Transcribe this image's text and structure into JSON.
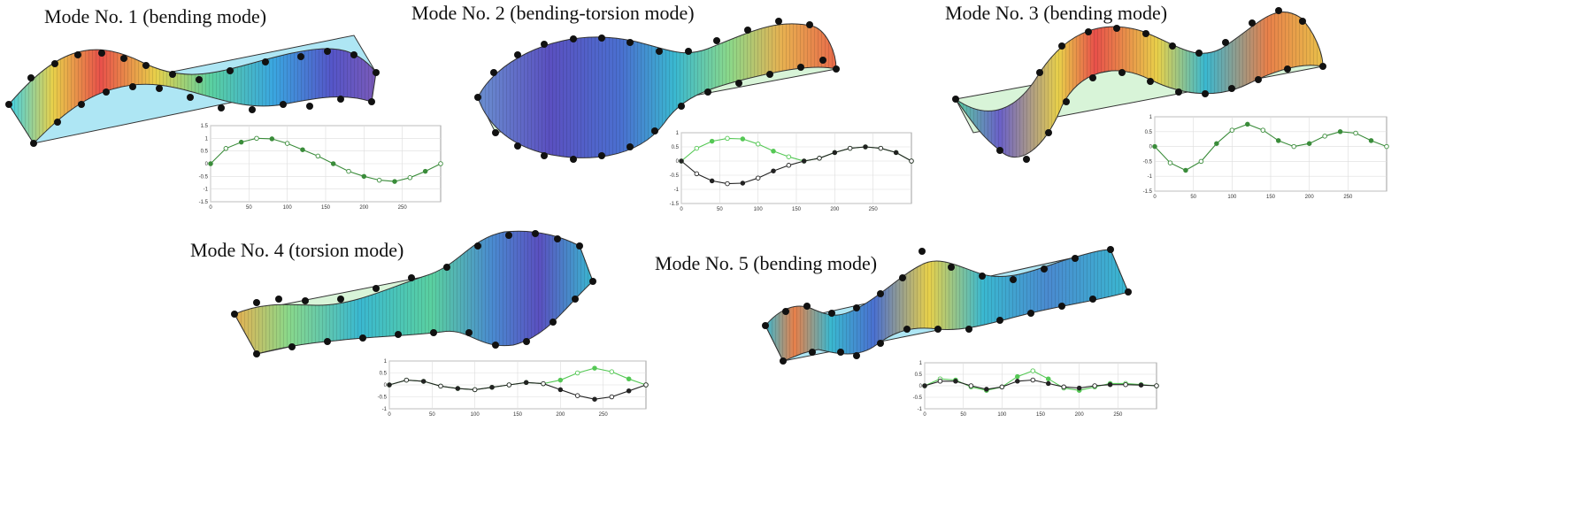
{
  "modes": [
    {
      "title": "Mode No. 1 (bending mode)",
      "type": "bending",
      "plot": {
        "xlim": [
          0,
          300
        ],
        "ylim": [
          -1.5,
          1.5
        ],
        "xticks": [
          "0",
          "50",
          "100",
          "150",
          "200",
          "250"
        ],
        "yticks": [
          "1.5",
          "1",
          "0.5",
          "0",
          "-0.5",
          "-1",
          "-1.5"
        ],
        "series": [
          {
            "color": "#3a8c3a",
            "points": [
              [
                0,
                0
              ],
              [
                20,
                0.6
              ],
              [
                40,
                0.85
              ],
              [
                60,
                1
              ],
              [
                80,
                0.98
              ],
              [
                100,
                0.8
              ],
              [
                120,
                0.55
              ],
              [
                140,
                0.3
              ],
              [
                160,
                0
              ],
              [
                180,
                -0.3
              ],
              [
                200,
                -0.5
              ],
              [
                220,
                -0.65
              ],
              [
                240,
                -0.7
              ],
              [
                260,
                -0.55
              ],
              [
                280,
                -0.3
              ],
              [
                300,
                0
              ]
            ]
          }
        ]
      }
    },
    {
      "title": "Mode No. 2 (bending-torsion mode)",
      "type": "bending-torsion",
      "plot": {
        "xlim": [
          0,
          300
        ],
        "ylim": [
          -1.5,
          1
        ],
        "xticks": [
          "0",
          "50",
          "100",
          "150",
          "200",
          "250"
        ],
        "yticks": [
          "1",
          "0.5",
          "0",
          "-0.5",
          "-1",
          "-1.5"
        ],
        "series": [
          {
            "color": "#55c855",
            "points": [
              [
                0,
                0
              ],
              [
                20,
                0.45
              ],
              [
                40,
                0.7
              ],
              [
                60,
                0.8
              ],
              [
                80,
                0.78
              ],
              [
                100,
                0.6
              ],
              [
                120,
                0.35
              ],
              [
                140,
                0.15
              ],
              [
                160,
                0
              ],
              [
                180,
                0.1
              ],
              [
                200,
                0.3
              ],
              [
                220,
                0.45
              ],
              [
                240,
                0.5
              ],
              [
                260,
                0.45
              ],
              [
                280,
                0.3
              ],
              [
                300,
                0
              ]
            ]
          },
          {
            "color": "#222222",
            "points": [
              [
                0,
                0
              ],
              [
                20,
                -0.45
              ],
              [
                40,
                -0.7
              ],
              [
                60,
                -0.8
              ],
              [
                80,
                -0.78
              ],
              [
                100,
                -0.6
              ],
              [
                120,
                -0.35
              ],
              [
                140,
                -0.15
              ],
              [
                160,
                0
              ],
              [
                180,
                0.1
              ],
              [
                200,
                0.3
              ],
              [
                220,
                0.45
              ],
              [
                240,
                0.5
              ],
              [
                260,
                0.45
              ],
              [
                280,
                0.3
              ],
              [
                300,
                0
              ]
            ]
          }
        ]
      }
    },
    {
      "title": "Mode No. 3 (bending mode)",
      "type": "bending",
      "plot": {
        "xlim": [
          0,
          300
        ],
        "ylim": [
          -1.5,
          1
        ],
        "xticks": [
          "0",
          "50",
          "100",
          "150",
          "200",
          "250"
        ],
        "yticks": [
          "1",
          "0.5",
          "0",
          "-0.5",
          "-1",
          "-1.5"
        ],
        "series": [
          {
            "color": "#3a8c3a",
            "points": [
              [
                0,
                0
              ],
              [
                20,
                -0.55
              ],
              [
                40,
                -0.8
              ],
              [
                60,
                -0.5
              ],
              [
                80,
                0.1
              ],
              [
                100,
                0.55
              ],
              [
                120,
                0.75
              ],
              [
                140,
                0.55
              ],
              [
                160,
                0.2
              ],
              [
                180,
                0
              ],
              [
                200,
                0.1
              ],
              [
                220,
                0.35
              ],
              [
                240,
                0.5
              ],
              [
                260,
                0.45
              ],
              [
                280,
                0.2
              ],
              [
                300,
                0
              ]
            ]
          }
        ]
      }
    },
    {
      "title": "Mode No. 4 (torsion mode)",
      "type": "torsion",
      "plot": {
        "xlim": [
          0,
          300
        ],
        "ylim": [
          -1,
          1
        ],
        "xticks": [
          "0",
          "50",
          "100",
          "150",
          "200",
          "250"
        ],
        "yticks": [
          "1",
          "0.5",
          "0",
          "-0.5",
          "-1"
        ],
        "series": [
          {
            "color": "#55c855",
            "points": [
              [
                0,
                0
              ],
              [
                20,
                0.2
              ],
              [
                40,
                0.15
              ],
              [
                60,
                -0.05
              ],
              [
                80,
                -0.15
              ],
              [
                100,
                -0.2
              ],
              [
                120,
                -0.1
              ],
              [
                140,
                0
              ],
              [
                160,
                0.1
              ],
              [
                180,
                0.05
              ],
              [
                200,
                0.2
              ],
              [
                220,
                0.5
              ],
              [
                240,
                0.7
              ],
              [
                260,
                0.55
              ],
              [
                280,
                0.25
              ],
              [
                300,
                0
              ]
            ]
          },
          {
            "color": "#222222",
            "points": [
              [
                0,
                0
              ],
              [
                20,
                0.2
              ],
              [
                40,
                0.15
              ],
              [
                60,
                -0.05
              ],
              [
                80,
                -0.15
              ],
              [
                100,
                -0.2
              ],
              [
                120,
                -0.1
              ],
              [
                140,
                0
              ],
              [
                160,
                0.1
              ],
              [
                180,
                0.05
              ],
              [
                200,
                -0.2
              ],
              [
                220,
                -0.45
              ],
              [
                240,
                -0.6
              ],
              [
                260,
                -0.5
              ],
              [
                280,
                -0.25
              ],
              [
                300,
                0
              ]
            ]
          }
        ]
      }
    },
    {
      "title": "Mode No. 5 (bending mode)",
      "type": "bending",
      "plot": {
        "xlim": [
          0,
          300
        ],
        "ylim": [
          -1,
          1
        ],
        "xticks": [
          "0",
          "50",
          "100",
          "150",
          "200",
          "250"
        ],
        "yticks": [
          "1",
          "0.5",
          "0",
          "-0.5",
          "-1"
        ],
        "series": [
          {
            "color": "#55c855",
            "points": [
              [
                0,
                0
              ],
              [
                20,
                0.3
              ],
              [
                40,
                0.25
              ],
              [
                60,
                -0.05
              ],
              [
                80,
                -0.2
              ],
              [
                100,
                -0.05
              ],
              [
                120,
                0.4
              ],
              [
                140,
                0.65
              ],
              [
                160,
                0.3
              ],
              [
                180,
                -0.1
              ],
              [
                200,
                -0.2
              ],
              [
                220,
                -0.05
              ],
              [
                240,
                0.1
              ],
              [
                260,
                0.1
              ],
              [
                280,
                0.05
              ],
              [
                300,
                0
              ]
            ]
          },
          {
            "color": "#222222",
            "points": [
              [
                0,
                0
              ],
              [
                20,
                0.2
              ],
              [
                40,
                0.2
              ],
              [
                60,
                0
              ],
              [
                80,
                -0.15
              ],
              [
                100,
                -0.05
              ],
              [
                120,
                0.2
              ],
              [
                140,
                0.25
              ],
              [
                160,
                0.1
              ],
              [
                180,
                -0.05
              ],
              [
                200,
                -0.1
              ],
              [
                220,
                0
              ],
              [
                240,
                0.05
              ],
              [
                260,
                0.05
              ],
              [
                280,
                0.03
              ],
              [
                300,
                0
              ]
            ]
          }
        ]
      }
    }
  ]
}
